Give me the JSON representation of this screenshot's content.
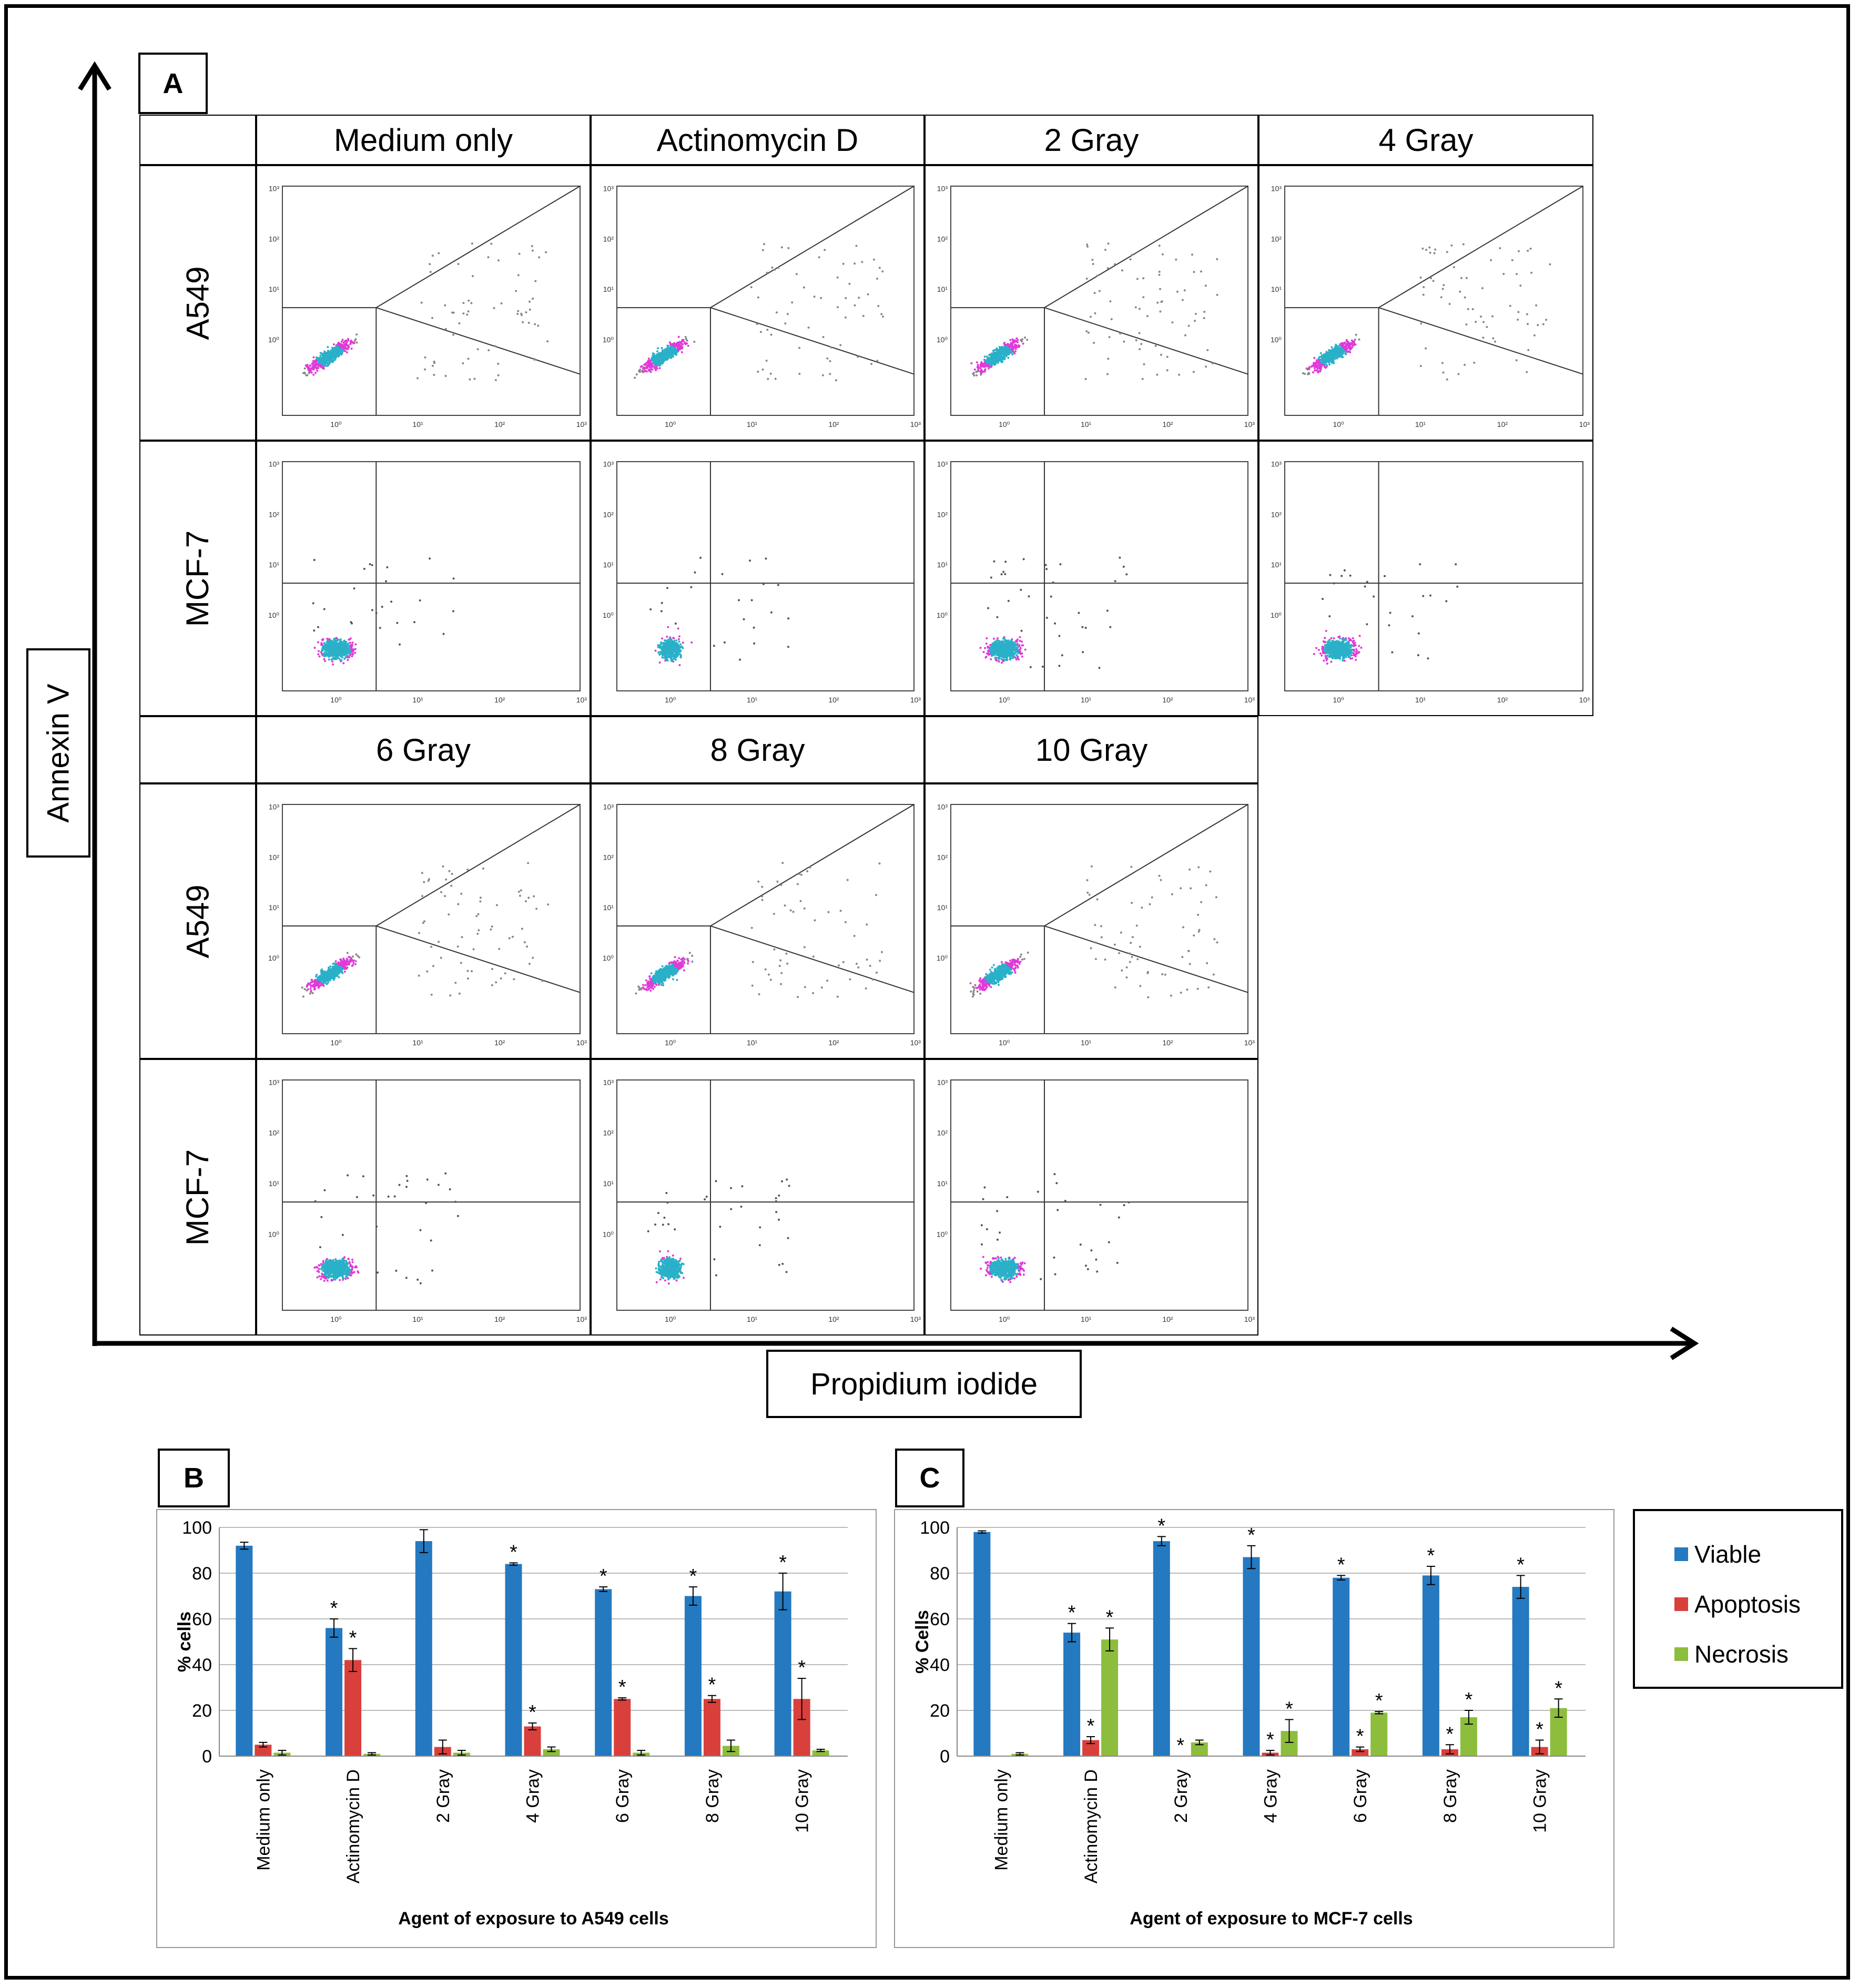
{
  "panel_a": {
    "label": "A",
    "y_axis_label": "Annexin V",
    "x_axis_label": "Propidium iodide",
    "top_headers": [
      "Medium only",
      "Actinomycin D",
      "2 Gray",
      "4 Gray"
    ],
    "bottom_headers": [
      "6 Gray",
      "8 Gray",
      "10 Gray"
    ],
    "row_labels": [
      "A549",
      "MCF-7",
      "A549",
      "MCF-7"
    ],
    "tick_labels": [
      "10⁰",
      "10¹",
      "10²",
      "10³"
    ]
  },
  "panel_b": {
    "label": "B"
  },
  "panel_c": {
    "label": "C"
  },
  "legend": {
    "items": [
      {
        "name": "Viable",
        "color": "#2479c0"
      },
      {
        "name": "Apoptosis",
        "color": "#d9403c"
      },
      {
        "name": "Necrosis",
        "color": "#8dbd3c"
      }
    ]
  },
  "chart_data": [
    {
      "type": "bar",
      "panel": "B",
      "categories": [
        "Medium only",
        "Actinomycin D",
        "2 Gray",
        "4 Gray",
        "6 Gray",
        "8 Gray",
        "10 Gray"
      ],
      "series": [
        {
          "name": "Viable",
          "values": [
            92,
            56,
            94,
            84,
            73,
            70,
            72
          ],
          "errors": [
            1.5,
            4,
            5,
            0.5,
            1,
            4,
            8
          ],
          "significant": [
            false,
            true,
            false,
            true,
            true,
            true,
            true
          ],
          "color": "#2479c0"
        },
        {
          "name": "Apoptosis",
          "values": [
            5,
            42,
            4,
            13,
            25,
            25,
            25
          ],
          "errors": [
            1,
            5,
            3,
            1.5,
            0.5,
            1.5,
            9
          ],
          "significant": [
            false,
            true,
            false,
            true,
            true,
            true,
            true
          ],
          "color": "#d9403c"
        },
        {
          "name": "Necrosis",
          "values": [
            1.5,
            1,
            1.5,
            3,
            1.5,
            4.5,
            2.5
          ],
          "errors": [
            1,
            0.5,
            1,
            1,
            1,
            2.5,
            0.5
          ],
          "significant": [
            false,
            false,
            false,
            false,
            false,
            false,
            false
          ],
          "color": "#8dbd3c"
        }
      ],
      "ylabel": "% cells",
      "xlabel": "Agent of exposure to A549 cells",
      "ylim": [
        0,
        100
      ],
      "yticks": [
        0,
        20,
        40,
        60,
        80,
        100
      ],
      "grid": true
    },
    {
      "type": "bar",
      "panel": "C",
      "categories": [
        "Medium only",
        "Actinomycin D",
        "2 Gray",
        "4 Gray",
        "6 Gray",
        "8 Gray",
        "10 Gray"
      ],
      "series": [
        {
          "name": "Viable",
          "values": [
            98,
            54,
            94,
            87,
            78,
            79,
            74
          ],
          "errors": [
            0.5,
            4,
            2,
            5,
            1,
            4,
            5
          ],
          "significant": [
            false,
            true,
            true,
            true,
            true,
            true,
            true
          ],
          "color": "#2479c0"
        },
        {
          "name": "Apoptosis",
          "values": [
            0,
            7,
            0,
            1.5,
            3,
            3,
            4
          ],
          "errors": [
            0,
            1.5,
            0,
            1,
            1,
            2,
            3
          ],
          "significant": [
            false,
            true,
            true,
            true,
            true,
            true,
            true
          ],
          "color": "#d9403c"
        },
        {
          "name": "Necrosis",
          "values": [
            1,
            51,
            6,
            11,
            19,
            17,
            21
          ],
          "errors": [
            0.5,
            5,
            1,
            5,
            0.5,
            3,
            4
          ],
          "significant": [
            false,
            true,
            false,
            true,
            true,
            true,
            true
          ],
          "color": "#8dbd3c"
        }
      ],
      "ylabel": "% Cells",
      "xlabel": "Agent of exposure to MCF-7 cells",
      "ylim": [
        0,
        100
      ],
      "yticks": [
        0,
        20,
        40,
        60,
        80,
        100
      ],
      "grid": true,
      "legend": "right"
    }
  ]
}
